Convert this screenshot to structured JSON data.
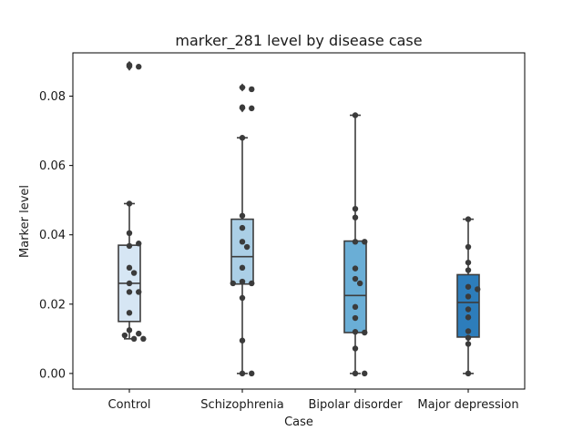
{
  "chart_data": {
    "type": "box",
    "title": "marker_281 level by disease case",
    "xlabel": "Case",
    "ylabel": "Marker level",
    "ylim": [
      -0.0045,
      0.0925
    ],
    "yticks": [
      0.0,
      0.02,
      0.04,
      0.06,
      0.08
    ],
    "ytick_labels": [
      "0.00",
      "0.02",
      "0.04",
      "0.06",
      "0.08"
    ],
    "categories": [
      "Control",
      "Schizophrenia",
      "Bipolar disorder",
      "Major depression"
    ],
    "colors": [
      "#d6e6f4",
      "#abcfe6",
      "#6aaed6",
      "#2d7dbb"
    ],
    "grid": false,
    "boxes": [
      {
        "name": "Control",
        "q1": 0.015,
        "median": 0.026,
        "q3": 0.037,
        "whisker_low": 0.01,
        "whisker_high": 0.049,
        "outliers": [
          0.0885,
          0.089
        ]
      },
      {
        "name": "Schizophrenia",
        "q1": 0.0258,
        "median": 0.0337,
        "q3": 0.0445,
        "whisker_low": 0.0,
        "whisker_high": 0.068,
        "outliers": [
          0.0765,
          0.0825
        ]
      },
      {
        "name": "Bipolar disorder",
        "q1": 0.0118,
        "median": 0.0225,
        "q3": 0.0382,
        "whisker_low": 0.0,
        "whisker_high": 0.0745,
        "outliers": []
      },
      {
        "name": "Major depression",
        "q1": 0.0105,
        "median": 0.0205,
        "q3": 0.0285,
        "whisker_low": 0.0,
        "whisker_high": 0.0445,
        "outliers": []
      }
    ],
    "points": [
      {
        "category": "Control",
        "values": [
          0.089,
          0.0885,
          0.049,
          0.0405,
          0.0368,
          0.0375,
          0.0305,
          0.029,
          0.026,
          0.0235,
          0.0235,
          0.0175,
          0.0125,
          0.0115,
          0.011,
          0.01,
          0.01
        ]
      },
      {
        "category": "Schizophrenia",
        "values": [
          0.0825,
          0.082,
          0.0768,
          0.0765,
          0.068,
          0.0455,
          0.042,
          0.038,
          0.0365,
          0.0305,
          0.0265,
          0.026,
          0.026,
          0.0218,
          0.0095,
          0.0,
          0.0
        ]
      },
      {
        "category": "Bipolar disorder",
        "values": [
          0.0745,
          0.0475,
          0.045,
          0.038,
          0.038,
          0.0303,
          0.0273,
          0.026,
          0.0192,
          0.016,
          0.012,
          0.0118,
          0.0072,
          0.0,
          0.0
        ]
      },
      {
        "category": "Major depression",
        "values": [
          0.0445,
          0.0365,
          0.032,
          0.0298,
          0.025,
          0.0243,
          0.0222,
          0.0185,
          0.0162,
          0.0122,
          0.0103,
          0.0085,
          0.0
        ]
      }
    ]
  }
}
